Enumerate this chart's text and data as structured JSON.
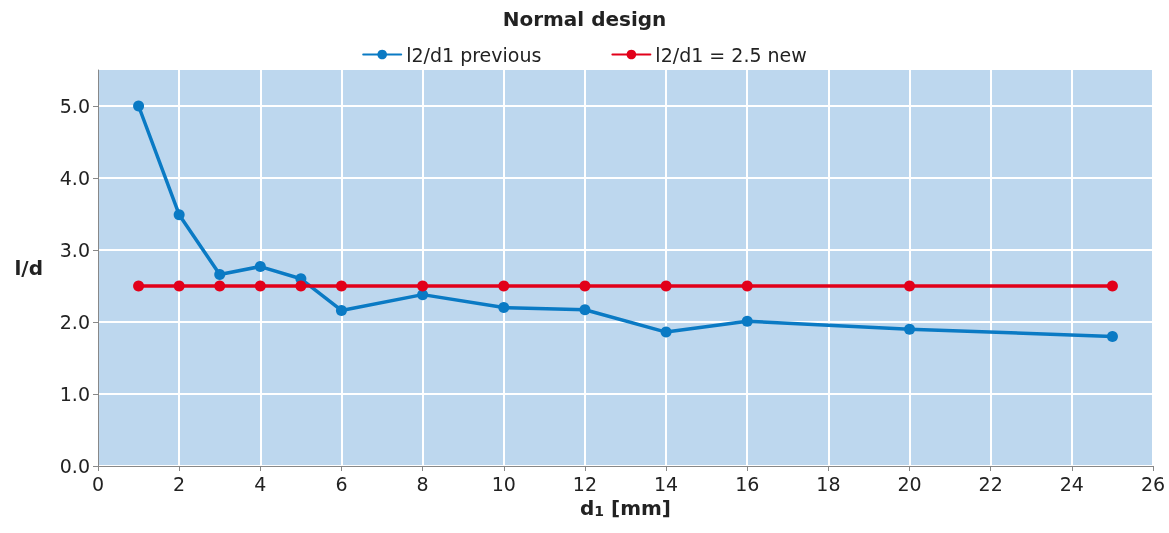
{
  "chart_data": {
    "type": "line",
    "title": "Normal design",
    "xlabel": "d$_{1}$ [mm]",
    "ylabel": "l/d",
    "x": [
      1,
      2,
      3,
      4,
      5,
      6,
      8,
      10,
      12,
      14,
      16,
      20,
      25
    ],
    "series": [
      {
        "name": "l2/d1 previous",
        "color": "#0a7ac4",
        "values": [
          5.0,
          3.49,
          2.66,
          2.77,
          2.6,
          2.16,
          2.38,
          2.2,
          2.17,
          1.86,
          2.01,
          1.9,
          1.8
        ]
      },
      {
        "name": "l2/d1 = 2.5 new",
        "color": "#e2001a",
        "values": [
          2.5,
          2.5,
          2.5,
          2.5,
          2.5,
          2.5,
          2.5,
          2.5,
          2.5,
          2.5,
          2.5,
          2.5,
          2.5
        ]
      }
    ],
    "xlim": [
      0,
      26
    ],
    "xticks": [
      0,
      2,
      4,
      6,
      8,
      10,
      12,
      14,
      16,
      18,
      20,
      22,
      24,
      26
    ],
    "ylim": [
      0,
      5.5
    ],
    "yticks": [
      {
        "value": 0,
        "label": "0.0"
      },
      {
        "value": 1,
        "label": "1.0"
      },
      {
        "value": 2,
        "label": "2.0"
      },
      {
        "value": 3,
        "label": "3.0"
      },
      {
        "value": 4,
        "label": "4.0"
      },
      {
        "value": 5,
        "label": "5.0"
      }
    ],
    "grid": true,
    "legend": "top",
    "marker": "circle",
    "line_style": "solid"
  }
}
